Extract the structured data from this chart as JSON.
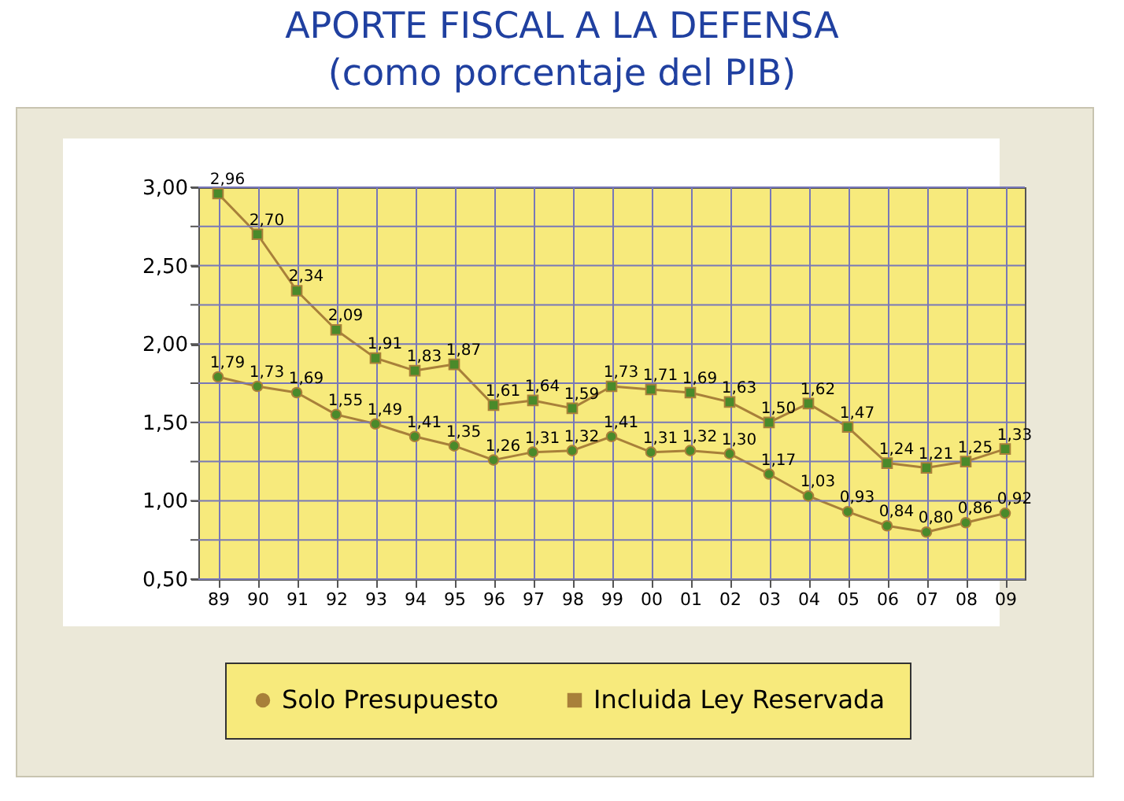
{
  "chart_data": {
    "type": "line",
    "title": "APORTE FISCAL A LA DEFENSA",
    "subtitle": "(como porcentaje del PIB)",
    "categories": [
      "89",
      "90",
      "91",
      "92",
      "93",
      "94",
      "95",
      "96",
      "97",
      "98",
      "99",
      "00",
      "01",
      "02",
      "03",
      "04",
      "05",
      "06",
      "07",
      "08",
      "09"
    ],
    "series": [
      {
        "name": "Solo Presupuesto",
        "color": "#a8803a",
        "marker": "circle",
        "values": [
          1.79,
          1.73,
          1.69,
          1.55,
          1.49,
          1.41,
          1.35,
          1.26,
          1.31,
          1.32,
          1.41,
          1.31,
          1.32,
          1.3,
          1.17,
          1.03,
          0.93,
          0.84,
          0.8,
          0.86,
          0.92
        ],
        "value_labels": [
          "1,79",
          "1,73",
          "1,69",
          "1,55",
          "1,49",
          "1,41",
          "1,35",
          "1,26",
          "1,31",
          "1,32",
          "1,41",
          "1,31",
          "1,32",
          "1,30",
          "1,17",
          "1,03",
          "0,93",
          "0,84",
          "0,80",
          "0,86",
          "0,92"
        ]
      },
      {
        "name": "Incluida Ley Reservada",
        "color": "#a8803a",
        "marker": "square",
        "values": [
          2.96,
          2.7,
          2.34,
          2.09,
          1.91,
          1.83,
          1.87,
          1.61,
          1.64,
          1.59,
          1.73,
          1.71,
          1.69,
          1.63,
          1.5,
          1.62,
          1.47,
          1.24,
          1.21,
          1.25,
          1.33
        ],
        "value_labels": [
          "2,96",
          "2,70",
          "2,34",
          "2,09",
          "1,91",
          "1,83",
          "1,87",
          "1,61",
          "1,64",
          "1,59",
          "1,73",
          "1,71",
          "1,69",
          "1,63",
          "1,50",
          "1,62",
          "1,47",
          "1,24",
          "1,21",
          "1,25",
          "1,33"
        ]
      }
    ],
    "ylim": [
      0.5,
      3.0
    ],
    "yticks": [
      {
        "value": 0.5,
        "label": "0,50"
      },
      {
        "value": 0.75,
        "label": null
      },
      {
        "value": 1.0,
        "label": "1,00"
      },
      {
        "value": 1.25,
        "label": null
      },
      {
        "value": 1.5,
        "label": "1,50"
      },
      {
        "value": 1.75,
        "label": null
      },
      {
        "value": 2.0,
        "label": "2,00"
      },
      {
        "value": 2.25,
        "label": null
      },
      {
        "value": 2.5,
        "label": "2,50"
      },
      {
        "value": 2.75,
        "label": null
      },
      {
        "value": 3.0,
        "label": "3,00"
      }
    ],
    "grid": true,
    "legend": "bottom",
    "line_style": "solid"
  }
}
